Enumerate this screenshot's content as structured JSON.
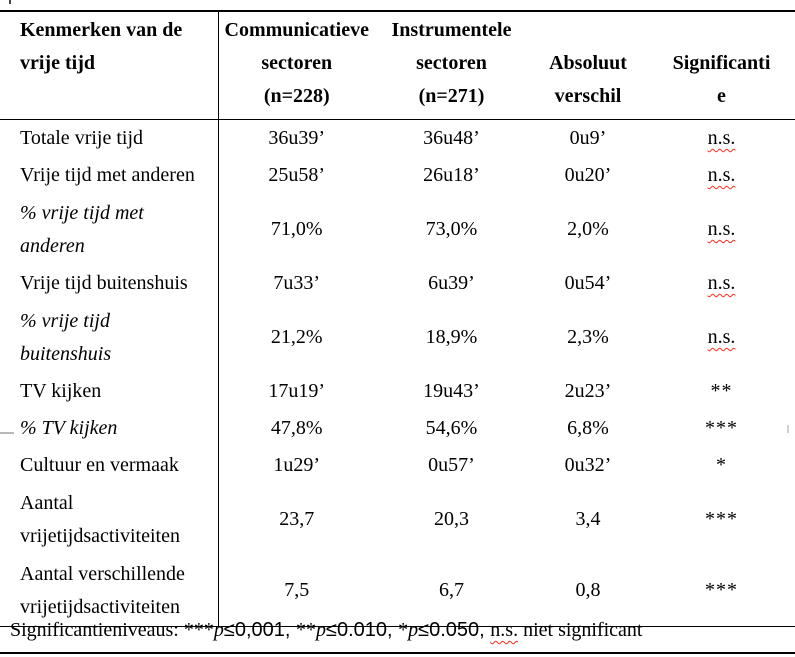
{
  "page": {
    "background": "#ffffff",
    "text_color": "#000000",
    "border_color": "#000000",
    "spellcheck_squiggle_color": "#ff2a1a"
  },
  "table": {
    "header": {
      "col1": {
        "lines": [
          "Kenmerken van de",
          "vrije tijd"
        ]
      },
      "col2": {
        "lines": [
          "Communicatieve",
          "sectoren",
          "(n=228)"
        ]
      },
      "col3": {
        "lines": [
          "Instrumentele",
          "sectoren",
          "(n=271)"
        ]
      },
      "col4": {
        "lines": [
          "Absoluut",
          "verschil"
        ]
      },
      "col5": {
        "lines": [
          "Significanti",
          "e"
        ]
      }
    },
    "rows": [
      {
        "label_lines": [
          "Totale vrije tijd"
        ],
        "italic": false,
        "communicatieve": "36u39’",
        "instrumentele": "36u48’",
        "verschil": "0u9’",
        "significantie": "n.s."
      },
      {
        "label_lines": [
          "Vrije tijd met anderen"
        ],
        "italic": false,
        "communicatieve": "25u58’",
        "instrumentele": "26u18’",
        "verschil": "0u20’",
        "significantie": "n.s."
      },
      {
        "label_lines": [
          "% vrije tijd met",
          "anderen"
        ],
        "italic": true,
        "communicatieve": "71,0%",
        "instrumentele": "73,0%",
        "verschil": "2,0%",
        "significantie": "n.s."
      },
      {
        "label_lines": [
          "Vrije tijd buitenshuis"
        ],
        "italic": false,
        "communicatieve": "7u33’",
        "instrumentele": "6u39’",
        "verschil": "0u54’",
        "significantie": "n.s."
      },
      {
        "label_lines": [
          "% vrije tijd",
          "buitenshuis"
        ],
        "italic": true,
        "communicatieve": "21,2%",
        "instrumentele": "18,9%",
        "verschil": "2,3%",
        "significantie": "n.s."
      },
      {
        "label_lines": [
          "TV kijken"
        ],
        "italic": false,
        "communicatieve": "17u19’",
        "instrumentele": "19u43’",
        "verschil": "2u23’",
        "significantie": "**"
      },
      {
        "label_lines": [
          "% TV kijken"
        ],
        "italic": true,
        "communicatieve": "47,8%",
        "instrumentele": "54,6%",
        "verschil": "6,8%",
        "significantie": "***"
      },
      {
        "label_lines": [
          "Cultuur en vermaak"
        ],
        "italic": false,
        "communicatieve": "1u29’",
        "instrumentele": "0u57’",
        "verschil": "0u32’",
        "significantie": "*"
      },
      {
        "label_lines": [
          "Aantal",
          "vrijetijdsactiviteiten"
        ],
        "italic": false,
        "communicatieve": "23,7",
        "instrumentele": "20,3",
        "verschil": "3,4",
        "significantie": "***"
      },
      {
        "label_lines": [
          "Aantal verschillende",
          "vrijetijdsactiviteiten"
        ],
        "italic": false,
        "communicatieve": "7,5",
        "instrumentele": "6,7",
        "verschil": "0,8",
        "significantie": "***"
      }
    ]
  },
  "footnote": {
    "segments": [
      {
        "text": "Significantieniveaus: "
      },
      {
        "text": "***"
      },
      {
        "text": "p"
      },
      {
        "text": "≤0,001, "
      },
      {
        "text": "**"
      },
      {
        "text": "p"
      },
      {
        "text": "≤0.010, "
      },
      {
        "text": "*"
      },
      {
        "text": "p"
      },
      {
        "text": "≤0.050, "
      },
      {
        "text": "n.s."
      },
      {
        "text": " niet significant"
      }
    ]
  }
}
